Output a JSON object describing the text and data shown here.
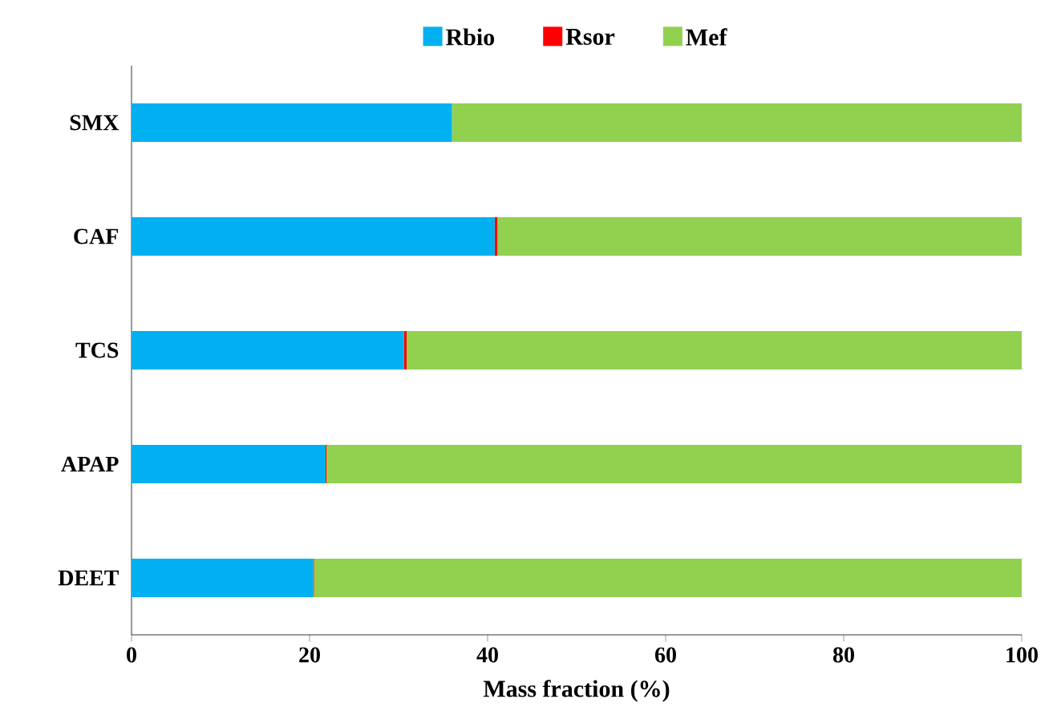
{
  "chart_data": {
    "type": "bar",
    "orientation": "horizontal",
    "stacked": true,
    "xlabel": "Mass fraction (%)",
    "categories": [
      "SMX",
      "CAF",
      "TCS",
      "APAP",
      "DEET"
    ],
    "series": [
      {
        "name": "Rbio",
        "color": "#00b0f0",
        "values": [
          36.0,
          40.8,
          30.6,
          21.8,
          20.4
        ]
      },
      {
        "name": "Rsor",
        "color": "#ff0000",
        "values": [
          0.0,
          0.3,
          0.3,
          0.1,
          0.1
        ]
      },
      {
        "name": "Mef",
        "color": "#92d050",
        "values": [
          64.0,
          58.9,
          69.1,
          78.1,
          79.5
        ]
      }
    ],
    "xlim": [
      0,
      100
    ],
    "xticks": [
      0,
      20,
      40,
      60,
      80,
      100
    ],
    "legend": "top",
    "grid": false
  }
}
